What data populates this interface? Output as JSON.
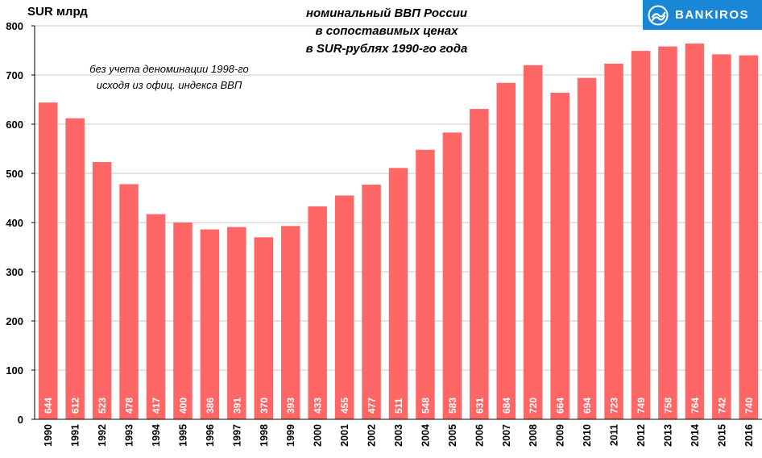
{
  "header": {
    "unit_label": "SUR млрд",
    "title_lines": [
      "номинальный ВВП России",
      "в сопоставимых ценах",
      "в SUR-рублях 1990-го года"
    ],
    "note_lines": [
      "без учета деноминации 1998-го",
      "исходя из офиц. индекса ВВП"
    ]
  },
  "logo": {
    "text": "BANKIROS",
    "color": "#1a86d6"
  },
  "chart_data": {
    "type": "bar",
    "title": "номинальный ВВП России в сопоставимых ценах в SUR-рублях 1990-го года",
    "ylabel": "SUR млрд",
    "xlabel": "",
    "categories": [
      "1990",
      "1991",
      "1992",
      "1993",
      "1994",
      "1995",
      "1996",
      "1997",
      "1998",
      "1999",
      "2000",
      "2001",
      "2002",
      "2003",
      "2004",
      "2005",
      "2006",
      "2007",
      "2008",
      "2009",
      "2010",
      "2011",
      "2012",
      "2013",
      "2014",
      "2015",
      "2016"
    ],
    "values": [
      644,
      612,
      523,
      478,
      417,
      400,
      386,
      391,
      370,
      393,
      433,
      455,
      477,
      511,
      548,
      583,
      631,
      684,
      720,
      664,
      694,
      723,
      749,
      758,
      764,
      742,
      740
    ],
    "ylim": [
      0,
      800
    ],
    "yticks": [
      0,
      100,
      200,
      300,
      400,
      500,
      600,
      700,
      800
    ],
    "grid": true,
    "bar_color": "#ff6666",
    "data_label_color": "#ffffff",
    "legend": "none"
  }
}
